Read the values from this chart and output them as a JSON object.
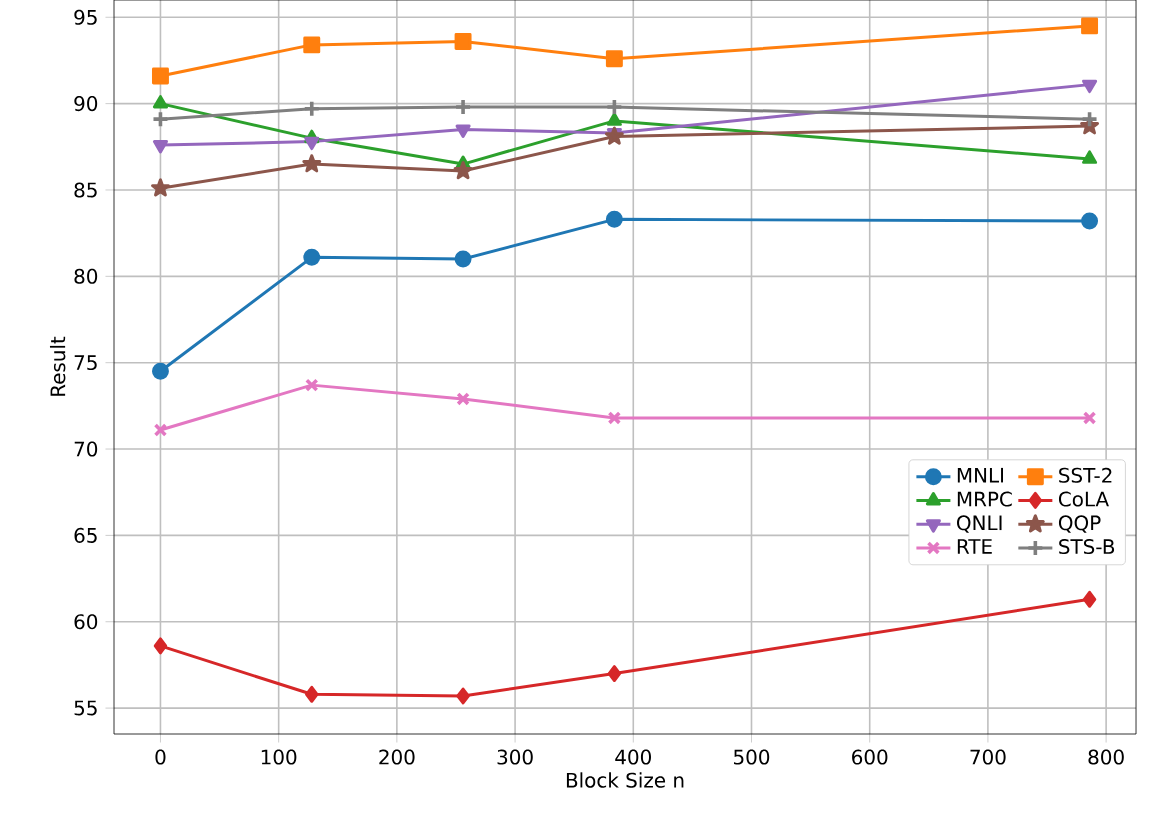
{
  "chart_data": {
    "type": "line",
    "xlabel": "Block Size n",
    "ylabel": "Result",
    "x": [
      0,
      128,
      256,
      384,
      786
    ],
    "series": [
      {
        "name": "MNLI",
        "color": "#1f77b4",
        "marker": "circle",
        "values": [
          74.5,
          81.1,
          81.0,
          83.3,
          83.2
        ]
      },
      {
        "name": "SST-2",
        "color": "#ff7f0e",
        "marker": "square",
        "values": [
          91.6,
          93.4,
          93.6,
          92.6,
          94.5
        ]
      },
      {
        "name": "MRPC",
        "color": "#2ca02c",
        "marker": "triangle",
        "values": [
          90.0,
          88.0,
          86.5,
          89.0,
          86.8
        ]
      },
      {
        "name": "CoLA",
        "color": "#d62728",
        "marker": "diamond",
        "values": [
          58.6,
          55.8,
          55.7,
          57.0,
          61.3
        ]
      },
      {
        "name": "QNLI",
        "color": "#9467bd",
        "marker": "triangle_down",
        "values": [
          87.6,
          87.8,
          88.5,
          88.3,
          91.1
        ]
      },
      {
        "name": "QQP",
        "color": "#8c564b",
        "marker": "star",
        "values": [
          85.1,
          86.5,
          86.1,
          88.1,
          88.7
        ]
      },
      {
        "name": "RTE",
        "color": "#e377c2",
        "marker": "cross",
        "values": [
          71.1,
          73.7,
          72.9,
          71.8,
          71.8
        ]
      },
      {
        "name": "STS-B",
        "color": "#7f7f7f",
        "marker": "plus",
        "values": [
          89.1,
          89.7,
          89.8,
          89.8,
          89.1
        ]
      }
    ],
    "xlim": [
      -39.3,
      825.3
    ],
    "ylim": [
      53.5,
      96.0
    ],
    "xticks": [
      0,
      100,
      200,
      300,
      400,
      500,
      600,
      700,
      800
    ],
    "yticks": [
      55,
      60,
      65,
      70,
      75,
      80,
      85,
      90,
      95
    ],
    "grid": true,
    "legend": "right"
  }
}
